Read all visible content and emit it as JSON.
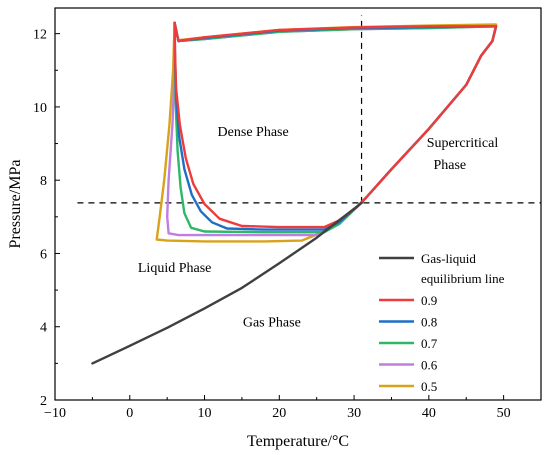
{
  "chart_data": {
    "type": "line",
    "xlabel": "Temperature/°C",
    "ylabel": "Pressure/MPa",
    "xlim": [
      -10,
      55
    ],
    "ylim": [
      2,
      12.7
    ],
    "xticks": [
      -10,
      0,
      10,
      20,
      30,
      40,
      50
    ],
    "yticks": [
      2,
      4,
      6,
      8,
      10,
      12
    ],
    "grid": false,
    "legend_position": "bottom-right",
    "annotations": [
      {
        "id": "dense",
        "text": "Dense Phase",
        "x": 16.5,
        "y": 9.2
      },
      {
        "id": "supercritical-1",
        "text": "Supercritical",
        "x": 44.5,
        "y": 8.9
      },
      {
        "id": "supercritical-2",
        "text": "Phase",
        "x": 42.8,
        "y": 8.3
      },
      {
        "id": "liquid",
        "text": "Liquid Phase",
        "x": 6,
        "y": 5.5
      },
      {
        "id": "gas",
        "text": "Gas Phase",
        "x": 19,
        "y": 4.0
      }
    ],
    "critical_point": {
      "temperature": 31,
      "pressure": 7.38
    },
    "reference_lines": [
      {
        "orientation": "vertical",
        "x": 31,
        "y_range": [
          7.38,
          12.5
        ]
      },
      {
        "orientation": "horizontal",
        "y": 7.38,
        "x_range": [
          -7,
          55
        ]
      }
    ],
    "series": [
      {
        "name": "Gas-liquid equilibrium line",
        "color": "#404040",
        "points": [
          [
            -5,
            3.0
          ],
          [
            0,
            3.48
          ],
          [
            5,
            3.97
          ],
          [
            10,
            4.5
          ],
          [
            15,
            5.06
          ],
          [
            20,
            5.73
          ],
          [
            25,
            6.43
          ],
          [
            31,
            7.38
          ]
        ]
      },
      {
        "name": "0.9",
        "color": "#ee3b3b",
        "points": [
          [
            6,
            12.3
          ],
          [
            6.05,
            11.5
          ],
          [
            6.2,
            10.5
          ],
          [
            6.7,
            9.5
          ],
          [
            7.5,
            8.6
          ],
          [
            8.5,
            7.9
          ],
          [
            10,
            7.35
          ],
          [
            12,
            6.95
          ],
          [
            15,
            6.75
          ],
          [
            20,
            6.72
          ],
          [
            26,
            6.72
          ],
          [
            28,
            6.9
          ],
          [
            30.4,
            7.27
          ],
          [
            31.5,
            7.5
          ],
          [
            35,
            8.3
          ],
          [
            40,
            9.4
          ],
          [
            45,
            10.6
          ],
          [
            47,
            11.4
          ],
          [
            48.5,
            11.8
          ],
          [
            49,
            12.2
          ],
          [
            40,
            12.2
          ],
          [
            30,
            12.17
          ],
          [
            20,
            12.1
          ],
          [
            10,
            11.9
          ],
          [
            6.5,
            11.8
          ],
          [
            6,
            12.3
          ]
        ]
      },
      {
        "name": "0.8",
        "color": "#1e6ec8",
        "points": [
          [
            6,
            12.3
          ],
          [
            6.05,
            11.4
          ],
          [
            6.2,
            10.3
          ],
          [
            6.6,
            9.2
          ],
          [
            7.3,
            8.3
          ],
          [
            8.3,
            7.6
          ],
          [
            9.5,
            7.15
          ],
          [
            11,
            6.85
          ],
          [
            13,
            6.68
          ],
          [
            18,
            6.65
          ],
          [
            26,
            6.65
          ],
          [
            28,
            6.85
          ],
          [
            30.4,
            7.27
          ],
          [
            31.5,
            7.5
          ],
          [
            35,
            8.3
          ],
          [
            40,
            9.4
          ],
          [
            45,
            10.6
          ],
          [
            47,
            11.4
          ],
          [
            48.5,
            11.8
          ],
          [
            49,
            12.2
          ],
          [
            40,
            12.18
          ],
          [
            30,
            12.15
          ],
          [
            20,
            12.08
          ],
          [
            10,
            11.88
          ],
          [
            6.5,
            11.8
          ],
          [
            6,
            12.3
          ]
        ]
      },
      {
        "name": "0.7",
        "color": "#2db868",
        "points": [
          [
            6,
            12.3
          ],
          [
            6.05,
            11.2
          ],
          [
            6.15,
            10.0
          ],
          [
            6.4,
            8.8
          ],
          [
            6.8,
            7.8
          ],
          [
            7.3,
            7.1
          ],
          [
            8.2,
            6.7
          ],
          [
            10,
            6.6
          ],
          [
            18,
            6.58
          ],
          [
            26,
            6.58
          ],
          [
            28,
            6.8
          ],
          [
            30.4,
            7.27
          ],
          [
            31.5,
            7.5
          ],
          [
            35,
            8.3
          ],
          [
            40,
            9.4
          ],
          [
            45,
            10.6
          ],
          [
            47,
            11.4
          ],
          [
            48.5,
            11.8
          ],
          [
            49,
            12.2
          ],
          [
            40,
            12.15
          ],
          [
            30,
            12.12
          ],
          [
            20,
            12.05
          ],
          [
            10,
            11.85
          ],
          [
            6.5,
            11.8
          ],
          [
            6,
            12.3
          ]
        ]
      },
      {
        "name": "0.6",
        "color": "#c07ee0",
        "points": [
          [
            6,
            12.3
          ],
          [
            6.0,
            11.0
          ],
          [
            5.7,
            9.5
          ],
          [
            5.2,
            8.0
          ],
          [
            5.0,
            7.0
          ],
          [
            5.2,
            6.55
          ],
          [
            6.5,
            6.5
          ],
          [
            10,
            6.5
          ],
          [
            18,
            6.5
          ],
          [
            25,
            6.5
          ],
          [
            27,
            6.75
          ],
          [
            30.4,
            7.27
          ],
          [
            31.5,
            7.5
          ],
          [
            35,
            8.3
          ],
          [
            40,
            9.4
          ],
          [
            45,
            10.6
          ],
          [
            47,
            11.4
          ],
          [
            48.5,
            11.8
          ],
          [
            49,
            12.2
          ],
          [
            40,
            12.15
          ],
          [
            30,
            12.12
          ],
          [
            20,
            12.05
          ],
          [
            10,
            11.85
          ],
          [
            6.5,
            11.8
          ],
          [
            6,
            12.3
          ]
        ]
      },
      {
        "name": "0.5",
        "color": "#d9a21b",
        "points": [
          [
            6,
            12.3
          ],
          [
            5.8,
            11.0
          ],
          [
            5.3,
            9.5
          ],
          [
            4.6,
            8.0
          ],
          [
            4.0,
            7.0
          ],
          [
            3.6,
            6.38
          ],
          [
            5,
            6.35
          ],
          [
            10,
            6.33
          ],
          [
            18,
            6.33
          ],
          [
            23,
            6.35
          ],
          [
            26,
            6.6
          ],
          [
            30.4,
            7.27
          ],
          [
            31.5,
            7.5
          ],
          [
            35,
            8.3
          ],
          [
            40,
            9.4
          ],
          [
            45,
            10.6
          ],
          [
            47,
            11.4
          ],
          [
            48.5,
            11.8
          ],
          [
            49,
            12.25
          ],
          [
            40,
            12.22
          ],
          [
            30,
            12.18
          ],
          [
            20,
            12.1
          ],
          [
            10,
            11.9
          ],
          [
            6.5,
            11.82
          ],
          [
            6,
            12.3
          ]
        ]
      }
    ],
    "legend_entries": [
      {
        "series": "Gas-liquid equilibrium line",
        "lines": [
          "Gas-liquid",
          "equilibrium line"
        ]
      },
      {
        "series": "0.9",
        "lines": [
          "0.9"
        ]
      },
      {
        "series": "0.8",
        "lines": [
          "0.8"
        ]
      },
      {
        "series": "0.7",
        "lines": [
          "0.7"
        ]
      },
      {
        "series": "0.6",
        "lines": [
          "0.6"
        ]
      },
      {
        "series": "0.5",
        "lines": [
          "0.5"
        ]
      }
    ]
  }
}
